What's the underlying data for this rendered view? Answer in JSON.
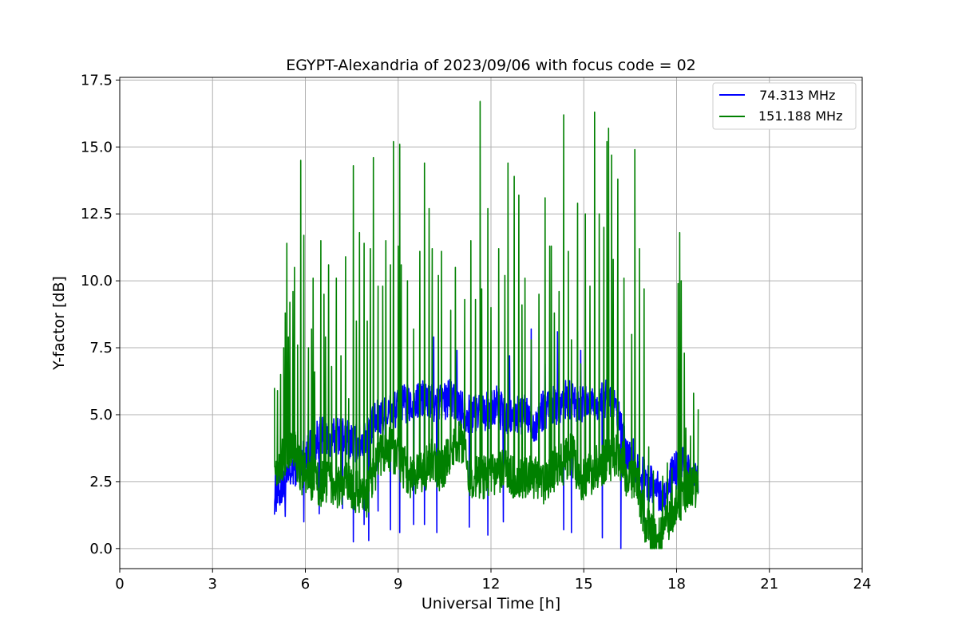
{
  "chart_data": {
    "type": "line",
    "title": "EGYPT-Alexandria of 2023/09/06 with focus code = 02",
    "xlabel": "Universal Time [h]",
    "ylabel": "Y-factor [dB]",
    "xlim": [
      0,
      24
    ],
    "ylim": [
      -0.75,
      17.6
    ],
    "xticks": [
      0,
      3,
      6,
      9,
      12,
      15,
      18,
      21,
      24
    ],
    "xtick_labels": [
      "0",
      "3",
      "6",
      "9",
      "12",
      "15",
      "18",
      "21",
      "24"
    ],
    "yticks": [
      0,
      2.5,
      5,
      7.5,
      10,
      12.5,
      15,
      17.5
    ],
    "ytick_labels": [
      "0.0",
      "2.5",
      "5.0",
      "7.5",
      "10.0",
      "12.5",
      "15.0",
      "17.5"
    ],
    "grid": true,
    "legend_position": "top-right",
    "series": [
      {
        "name": " 74.313 MHz",
        "color": "#0000ff",
        "x": [
          5.0,
          5.3,
          5.6,
          5.9,
          6.2,
          6.5,
          6.8,
          7.1,
          7.4,
          7.7,
          8.0,
          8.3,
          8.6,
          8.9,
          9.2,
          9.5,
          9.8,
          10.1,
          10.4,
          10.7,
          11.0,
          11.3,
          11.6,
          11.9,
          12.2,
          12.5,
          12.8,
          13.1,
          13.4,
          13.7,
          14.0,
          14.3,
          14.6,
          14.9,
          15.2,
          15.5,
          15.8,
          16.1,
          16.4,
          16.7,
          17.0,
          17.3,
          17.6,
          17.9,
          18.2,
          18.5,
          18.7
        ],
        "y": [
          2.0,
          2.3,
          3.0,
          3.3,
          3.8,
          4.2,
          4.0,
          4.3,
          4.1,
          3.9,
          4.2,
          4.8,
          5.0,
          5.2,
          5.4,
          5.3,
          5.6,
          5.4,
          5.5,
          5.6,
          5.3,
          5.0,
          5.2,
          5.1,
          5.4,
          4.8,
          5.0,
          5.0,
          4.6,
          5.2,
          5.3,
          5.5,
          5.6,
          5.4,
          5.5,
          5.4,
          5.7,
          4.9,
          3.5,
          3.0,
          2.6,
          2.3,
          2.0,
          2.8,
          3.1,
          2.6,
          2.5
        ],
        "spikes": [
          [
            5.05,
            1.6
          ],
          [
            5.35,
            1.2
          ],
          [
            5.95,
            1.0
          ],
          [
            6.45,
            1.3
          ],
          [
            7.2,
            1.5
          ],
          [
            7.55,
            0.25
          ],
          [
            7.9,
            0.9
          ],
          [
            8.05,
            0.3
          ],
          [
            8.35,
            1.4
          ],
          [
            8.75,
            0.7
          ],
          [
            9.05,
            0.6
          ],
          [
            9.5,
            0.9
          ],
          [
            9.85,
            0.9
          ],
          [
            10.15,
            7.9
          ],
          [
            10.25,
            0.6
          ],
          [
            10.9,
            7.4
          ],
          [
            11.3,
            0.8
          ],
          [
            11.9,
            0.5
          ],
          [
            12.4,
            1.0
          ],
          [
            12.6,
            7.2
          ],
          [
            13.3,
            8.2
          ],
          [
            13.75,
            6.9
          ],
          [
            14.15,
            8.1
          ],
          [
            14.35,
            0.7
          ],
          [
            14.6,
            0.6
          ],
          [
            14.9,
            7.4
          ],
          [
            15.6,
            0.4
          ],
          [
            16.2,
            0.0
          ],
          [
            16.6,
            4.1
          ],
          [
            16.95,
            1.0
          ],
          [
            17.9,
            3.2
          ]
        ]
      },
      {
        "name": "151.188 MHz",
        "color": "#008000",
        "x": [
          5.0,
          5.3,
          5.6,
          5.9,
          6.2,
          6.5,
          6.8,
          7.1,
          7.4,
          7.7,
          8.0,
          8.3,
          8.6,
          8.9,
          9.2,
          9.5,
          9.8,
          10.1,
          10.4,
          10.7,
          11.0,
          11.3,
          11.6,
          11.9,
          12.2,
          12.5,
          12.8,
          13.1,
          13.4,
          13.7,
          14.0,
          14.3,
          14.6,
          14.9,
          15.2,
          15.5,
          15.8,
          16.1,
          16.4,
          16.7,
          17.0,
          17.3,
          17.6,
          17.9,
          18.2,
          18.5,
          18.7
        ],
        "y": [
          3.0,
          3.4,
          3.8,
          2.8,
          2.6,
          2.4,
          2.6,
          2.3,
          2.4,
          2.1,
          2.0,
          3.1,
          3.8,
          3.6,
          3.0,
          2.6,
          2.9,
          3.3,
          2.8,
          3.6,
          4.0,
          2.8,
          2.6,
          2.7,
          2.8,
          2.9,
          2.6,
          2.7,
          2.6,
          2.4,
          2.9,
          3.1,
          3.6,
          2.6,
          2.8,
          3.1,
          3.3,
          3.6,
          2.7,
          2.6,
          0.9,
          0.3,
          0.7,
          1.4,
          2.0,
          2.4,
          2.1
        ],
        "spikes": [
          [
            5.0,
            6.0
          ],
          [
            5.1,
            5.9
          ],
          [
            5.2,
            6.5
          ],
          [
            5.3,
            7.5
          ],
          [
            5.35,
            8.8
          ],
          [
            5.4,
            11.4
          ],
          [
            5.45,
            7.9
          ],
          [
            5.5,
            9.2
          ],
          [
            5.6,
            9.6
          ],
          [
            5.65,
            10.5
          ],
          [
            5.75,
            7.6
          ],
          [
            5.85,
            14.5
          ],
          [
            5.95,
            11.7
          ],
          [
            6.1,
            7.5
          ],
          [
            6.2,
            8.2
          ],
          [
            6.25,
            10.1
          ],
          [
            6.3,
            6.6
          ],
          [
            6.5,
            11.5
          ],
          [
            6.6,
            9.5
          ],
          [
            6.65,
            7.9
          ],
          [
            6.75,
            10.6
          ],
          [
            6.85,
            6.8
          ],
          [
            7.0,
            10.1
          ],
          [
            7.15,
            7.2
          ],
          [
            7.3,
            10.9
          ],
          [
            7.4,
            5.6
          ],
          [
            7.55,
            14.3
          ],
          [
            7.65,
            8.5
          ],
          [
            7.75,
            11.8
          ],
          [
            7.9,
            11.4
          ],
          [
            8.0,
            8.5
          ],
          [
            8.1,
            11.2
          ],
          [
            8.2,
            14.6
          ],
          [
            8.35,
            9.8
          ],
          [
            8.5,
            9.8
          ],
          [
            8.6,
            11.5
          ],
          [
            8.75,
            10.6
          ],
          [
            8.85,
            15.2
          ],
          [
            9.0,
            11.3
          ],
          [
            9.05,
            15.1
          ],
          [
            9.1,
            10.6
          ],
          [
            9.3,
            10.0
          ],
          [
            9.5,
            8.2
          ],
          [
            9.7,
            11.1
          ],
          [
            9.85,
            14.4
          ],
          [
            10.0,
            12.7
          ],
          [
            10.1,
            11.2
          ],
          [
            10.3,
            10.2
          ],
          [
            10.4,
            11.1
          ],
          [
            10.7,
            8.9
          ],
          [
            10.85,
            10.5
          ],
          [
            11.15,
            9.3
          ],
          [
            11.35,
            11.5
          ],
          [
            11.5,
            9.3
          ],
          [
            11.65,
            16.7
          ],
          [
            11.7,
            9.7
          ],
          [
            11.9,
            12.7
          ],
          [
            12.0,
            9.0
          ],
          [
            12.25,
            11.2
          ],
          [
            12.45,
            10.2
          ],
          [
            12.55,
            14.4
          ],
          [
            12.75,
            13.9
          ],
          [
            12.9,
            13.2
          ],
          [
            13.0,
            9.1
          ],
          [
            13.1,
            10.1
          ],
          [
            13.3,
            7.8
          ],
          [
            13.55,
            9.5
          ],
          [
            13.75,
            13.1
          ],
          [
            13.9,
            11.3
          ],
          [
            13.95,
            11.3
          ],
          [
            14.05,
            8.8
          ],
          [
            14.2,
            9.6
          ],
          [
            14.35,
            16.2
          ],
          [
            14.5,
            11.1
          ],
          [
            14.6,
            7.8
          ],
          [
            14.8,
            12.9
          ],
          [
            14.9,
            6.9
          ],
          [
            15.05,
            12.5
          ],
          [
            15.2,
            9.8
          ],
          [
            15.35,
            16.3
          ],
          [
            15.5,
            12.5
          ],
          [
            15.65,
            12.0
          ],
          [
            15.75,
            15.2
          ],
          [
            15.8,
            15.7
          ],
          [
            15.9,
            14.7
          ],
          [
            15.95,
            10.8
          ],
          [
            16.1,
            13.8
          ],
          [
            16.3,
            10.1
          ],
          [
            16.55,
            8.0
          ],
          [
            16.65,
            14.9
          ],
          [
            16.8,
            11.2
          ],
          [
            16.95,
            9.7
          ],
          [
            17.1,
            3.8
          ],
          [
            17.25,
            2.9
          ],
          [
            17.55,
            2.7
          ],
          [
            17.7,
            3.2
          ],
          [
            17.85,
            3.0
          ],
          [
            18.05,
            9.9
          ],
          [
            18.1,
            11.8
          ],
          [
            18.15,
            10.0
          ],
          [
            18.25,
            7.3
          ],
          [
            18.3,
            4.5
          ],
          [
            18.45,
            4.2
          ],
          [
            18.55,
            5.8
          ],
          [
            18.7,
            5.2
          ]
        ]
      }
    ]
  }
}
